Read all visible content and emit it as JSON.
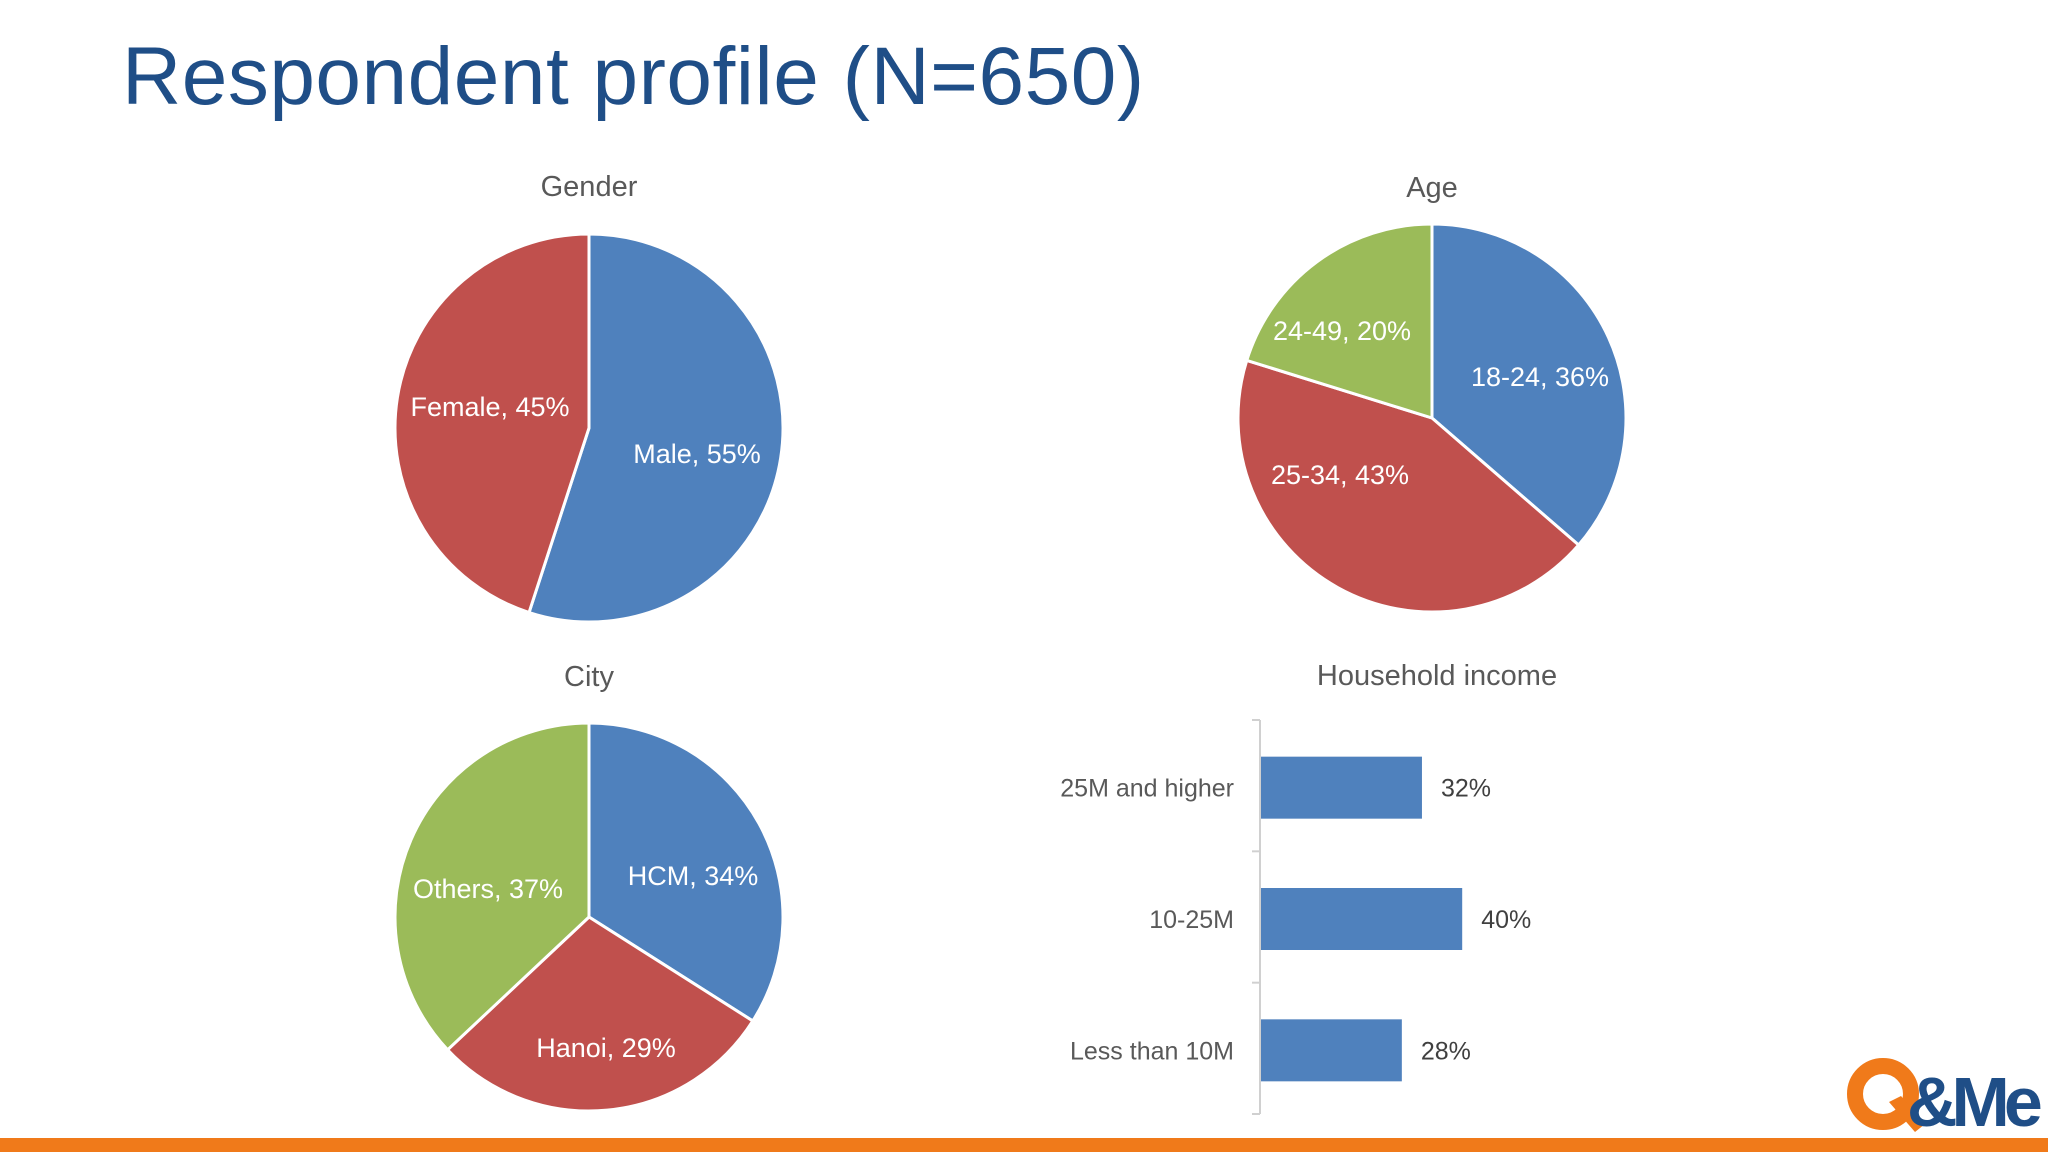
{
  "slide": {
    "title": "Respondent profile (N=650)"
  },
  "colors": {
    "blue": "#4f81bd",
    "red": "#c0504d",
    "green": "#9bbb59",
    "title": "#1f4e87",
    "accent_bar": "#f07a1a",
    "logo_orange": "#f07a1a",
    "logo_blue": "#1f4e87"
  },
  "logo": {
    "icon": "qandme-logo-icon",
    "text": "Q&Me"
  },
  "chart_data": [
    {
      "id": "gender",
      "type": "pie",
      "title": "Gender",
      "labels": [
        "Male",
        "Female"
      ],
      "values": [
        55,
        45
      ],
      "unit": "%",
      "colors": [
        "#4f81bd",
        "#c0504d"
      ],
      "data_labels": [
        "Male, 55%",
        "Female, 45%"
      ]
    },
    {
      "id": "age",
      "type": "pie",
      "title": "Age",
      "labels": [
        "18-24",
        "25-34",
        "24-49"
      ],
      "values": [
        36,
        43,
        20
      ],
      "unit": "%",
      "colors": [
        "#4f81bd",
        "#c0504d",
        "#9bbb59"
      ],
      "data_labels": [
        "18-24, 36%",
        "25-34, 43%",
        "24-49, 20%"
      ]
    },
    {
      "id": "city",
      "type": "pie",
      "title": "City",
      "labels": [
        "HCM",
        "Hanoi",
        "Others"
      ],
      "values": [
        34,
        29,
        37
      ],
      "unit": "%",
      "colors": [
        "#4f81bd",
        "#c0504d",
        "#9bbb59"
      ],
      "data_labels": [
        "HCM, 34%",
        "Hanoi, 29%",
        "Others, 37%"
      ]
    },
    {
      "id": "income",
      "type": "bar",
      "orientation": "horizontal",
      "title": "Household income",
      "categories": [
        "25M and higher",
        "10-25M",
        "Less than 10M"
      ],
      "values": [
        32,
        40,
        28
      ],
      "unit": "%",
      "color": "#4f81bd",
      "data_labels": [
        "32%",
        "40%",
        "28%"
      ],
      "xlim": [
        0,
        100
      ]
    }
  ]
}
